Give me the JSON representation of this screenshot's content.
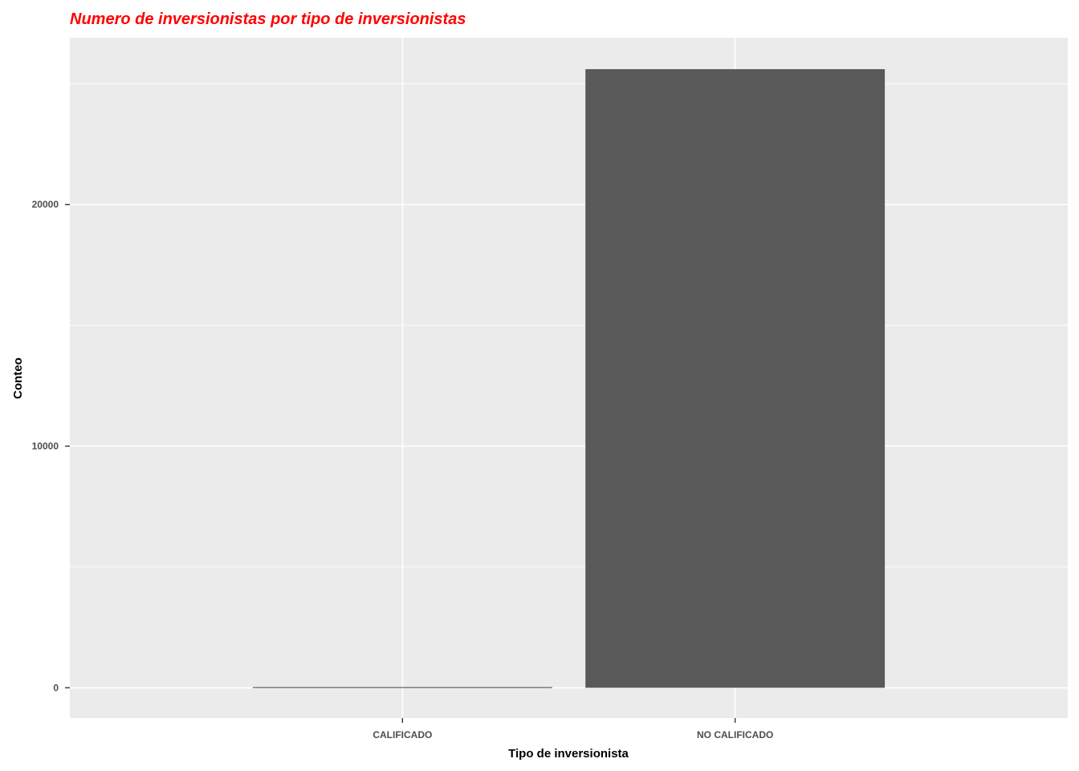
{
  "chart_data": {
    "type": "bar",
    "title": "Numero de inversionistas por tipo de inversionistas",
    "xlabel": "Tipo de inversionista",
    "ylabel": "Conteo",
    "categories": [
      "CALIFICADO",
      "NO CALIFICADO"
    ],
    "values": [
      30,
      25600
    ],
    "ylim": [
      -1250,
      26900
    ],
    "yticks": [
      0,
      10000,
      20000
    ],
    "ytick_labels": [
      "0",
      "10000",
      "20000"
    ],
    "grid": true,
    "legend": "none",
    "colors": {
      "title": "#ff0000",
      "bar": "#595959",
      "panel": "#ebebeb",
      "grid": "#ffffff",
      "tick_text": "#4d4d4d",
      "tick_mark": "#333333"
    }
  }
}
